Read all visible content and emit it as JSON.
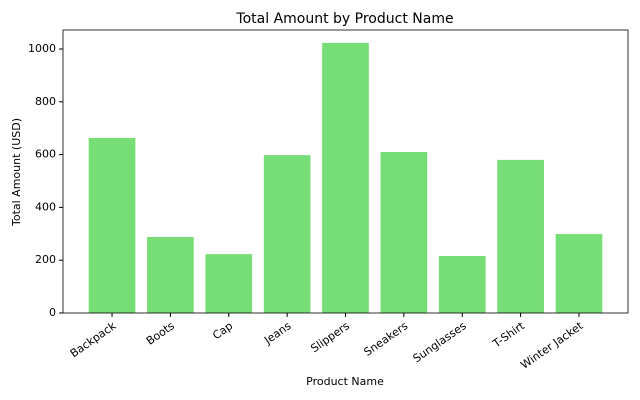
{
  "chart_data": {
    "type": "bar",
    "title": "Total Amount by Product Name",
    "x_label": "Product Name",
    "y_label": "Total Amount (USD)",
    "categories": [
      "Backpack",
      "Boots",
      "Cap",
      "Jeans",
      "Slippers",
      "Sneakers",
      "Sunglasses",
      "T-Shirt",
      "Winter Jacket"
    ],
    "values": [
      663,
      288,
      223,
      598,
      1023,
      610,
      216,
      580,
      299
    ],
    "color": "#77dd77",
    "ylim": [
      0,
      1072
    ],
    "yticks": [
      0,
      200,
      400,
      600,
      800,
      1000
    ],
    "grid": false
  }
}
